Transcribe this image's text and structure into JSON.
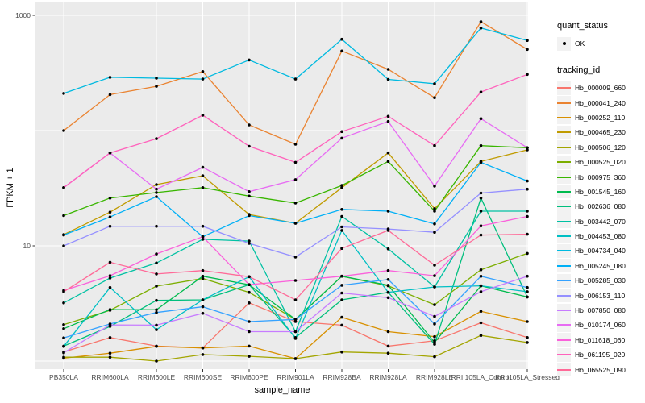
{
  "chart_data": {
    "type": "line",
    "title": "",
    "xlabel": "sample_name",
    "ylabel": "FPKM + 1",
    "y_scale": "log10",
    "ylim": [
      1,
      1000
    ],
    "y_tick_labels": [
      {
        "label": "1000",
        "value": 1000
      },
      {
        "label": "10",
        "value": 10
      }
    ],
    "y_gridline_values": [
      1,
      10,
      100,
      1000
    ],
    "grid": true,
    "legend_position": "right",
    "point_marker": {
      "shape": "dot",
      "color": "#000000"
    },
    "categories": [
      "PB350LA",
      "RRIM600LA",
      "RRIM600LE",
      "RRIM600SE",
      "RRIM600PE",
      "RRIM901LA",
      "RRIM928BA",
      "RRIM928LA",
      "RRIM928LE",
      "RRII105LA_Control",
      "RRII105LA_Stressed"
    ],
    "series": [
      {
        "name": "Hb_000009_660",
        "color": "#F8766D",
        "values": [
          1.2,
          1.6,
          1.35,
          1.3,
          3.2,
          2.2,
          2.05,
          1.35,
          1.5,
          2.15,
          1.6
        ]
      },
      {
        "name": "Hb_000041_240",
        "color": "#EA8331",
        "values": [
          100,
          205,
          242,
          325,
          112,
          76,
          490,
          340,
          193,
          880,
          506
        ]
      },
      {
        "name": "Hb_000252_110",
        "color": "#D89000",
        "values": [
          1.06,
          1.17,
          1.34,
          1.3,
          1.35,
          1.05,
          2.4,
          1.8,
          1.63,
          2.7,
          2.2
        ]
      },
      {
        "name": "Hb_000465_230",
        "color": "#C09B00",
        "values": [
          12.5,
          19.6,
          34,
          40.5,
          18.7,
          15.7,
          32,
          64,
          21,
          54,
          68
        ]
      },
      {
        "name": "Hb_000506_120",
        "color": "#A3A500",
        "values": [
          1.08,
          1.08,
          1.0,
          1.14,
          1.1,
          1.05,
          1.2,
          1.17,
          1.09,
          1.67,
          1.45
        ]
      },
      {
        "name": "Hb_000525_020",
        "color": "#7CAE00",
        "values": [
          2.07,
          2.76,
          4.47,
          5.2,
          3.95,
          2.3,
          5.45,
          4.5,
          3.08,
          6.2,
          8.6
        ]
      },
      {
        "name": "Hb_000975_360",
        "color": "#39B600",
        "values": [
          18.3,
          26,
          29,
          32,
          27,
          23.5,
          33.4,
          54,
          20,
          74,
          71
        ]
      },
      {
        "name": "Hb_001545_160",
        "color": "#00BB4E",
        "values": [
          1.91,
          2.8,
          2.79,
          5.45,
          4.6,
          2.3,
          5.45,
          4.55,
          1.45,
          4.5,
          3.6
        ]
      },
      {
        "name": "Hb_002636_080",
        "color": "#00BF7D",
        "values": [
          1.35,
          2.0,
          3.36,
          3.4,
          4.6,
          1.6,
          3.4,
          3.95,
          1.4,
          26,
          3.6
        ]
      },
      {
        "name": "Hb_003442_070",
        "color": "#00C1A3",
        "values": [
          3.2,
          5.25,
          7.1,
          11.4,
          11,
          1.8,
          18,
          9.4,
          4.4,
          20,
          20
        ]
      },
      {
        "name": "Hb_004453_080",
        "color": "#00BFC4",
        "values": [
          1.34,
          4.35,
          1.87,
          3.4,
          5.4,
          1.57,
          13.6,
          3.95,
          4.4,
          4.5,
          4.0
        ]
      },
      {
        "name": "Hb_004734_040",
        "color": "#00BAE0",
        "values": [
          210,
          290,
          285,
          280,
          410,
          280,
          620,
          278,
          255,
          776,
          605
        ]
      },
      {
        "name": "Hb_005245_080",
        "color": "#00B0F6",
        "values": [
          12.4,
          17.8,
          26.7,
          12,
          18.3,
          15.7,
          20.7,
          20,
          15.5,
          53,
          36.5
        ]
      },
      {
        "name": "Hb_005285_030",
        "color": "#35A2FF",
        "values": [
          1.59,
          2.1,
          2.64,
          2.96,
          2.2,
          2.3,
          4.55,
          5.1,
          2.1,
          5.45,
          4.35
        ]
      },
      {
        "name": "Hb_006153_110",
        "color": "#9590FF",
        "values": [
          10,
          14.8,
          14.8,
          14.8,
          10.5,
          8.0,
          14.6,
          14,
          13.1,
          28.7,
          31
        ]
      },
      {
        "name": "Hb_007850_080",
        "color": "#C77CFF",
        "values": [
          1.18,
          2.06,
          2.05,
          2.6,
          1.8,
          1.8,
          3.9,
          3.55,
          2.44,
          4.0,
          5.45
        ]
      },
      {
        "name": "Hb_010174_060",
        "color": "#E76BF3",
        "values": [
          32,
          64,
          31,
          48,
          29.5,
          37.5,
          86,
          120,
          33,
          127,
          71
        ]
      },
      {
        "name": "Hb_011618_060",
        "color": "#FA62DB",
        "values": [
          4.1,
          5.5,
          8.5,
          12,
          4.6,
          5.0,
          5.45,
          6.1,
          5.5,
          14.9,
          18
        ]
      },
      {
        "name": "Hb_061195_020",
        "color": "#FF62BC",
        "values": [
          32,
          64,
          85,
          136,
          73,
          53,
          98,
          133,
          74,
          216,
          307
        ]
      },
      {
        "name": "Hb_065525_090",
        "color": "#FF6A98",
        "values": [
          4.0,
          7.2,
          5.7,
          6.1,
          5.4,
          3.4,
          9.5,
          13.6,
          6.8,
          12.4,
          12.6
        ]
      }
    ]
  },
  "legend": {
    "quant_status_title": "quant_status",
    "quant_status_items": [
      {
        "label": "OK",
        "marker": "point"
      }
    ],
    "tracking_id_title": "tracking_id"
  },
  "colors": {
    "panel_bg": "#EBEBEB",
    "grid": "#FFFFFF",
    "key_bg": "#F2F2F2",
    "tick": "#333333",
    "tick_label": "#4D4D4D"
  }
}
